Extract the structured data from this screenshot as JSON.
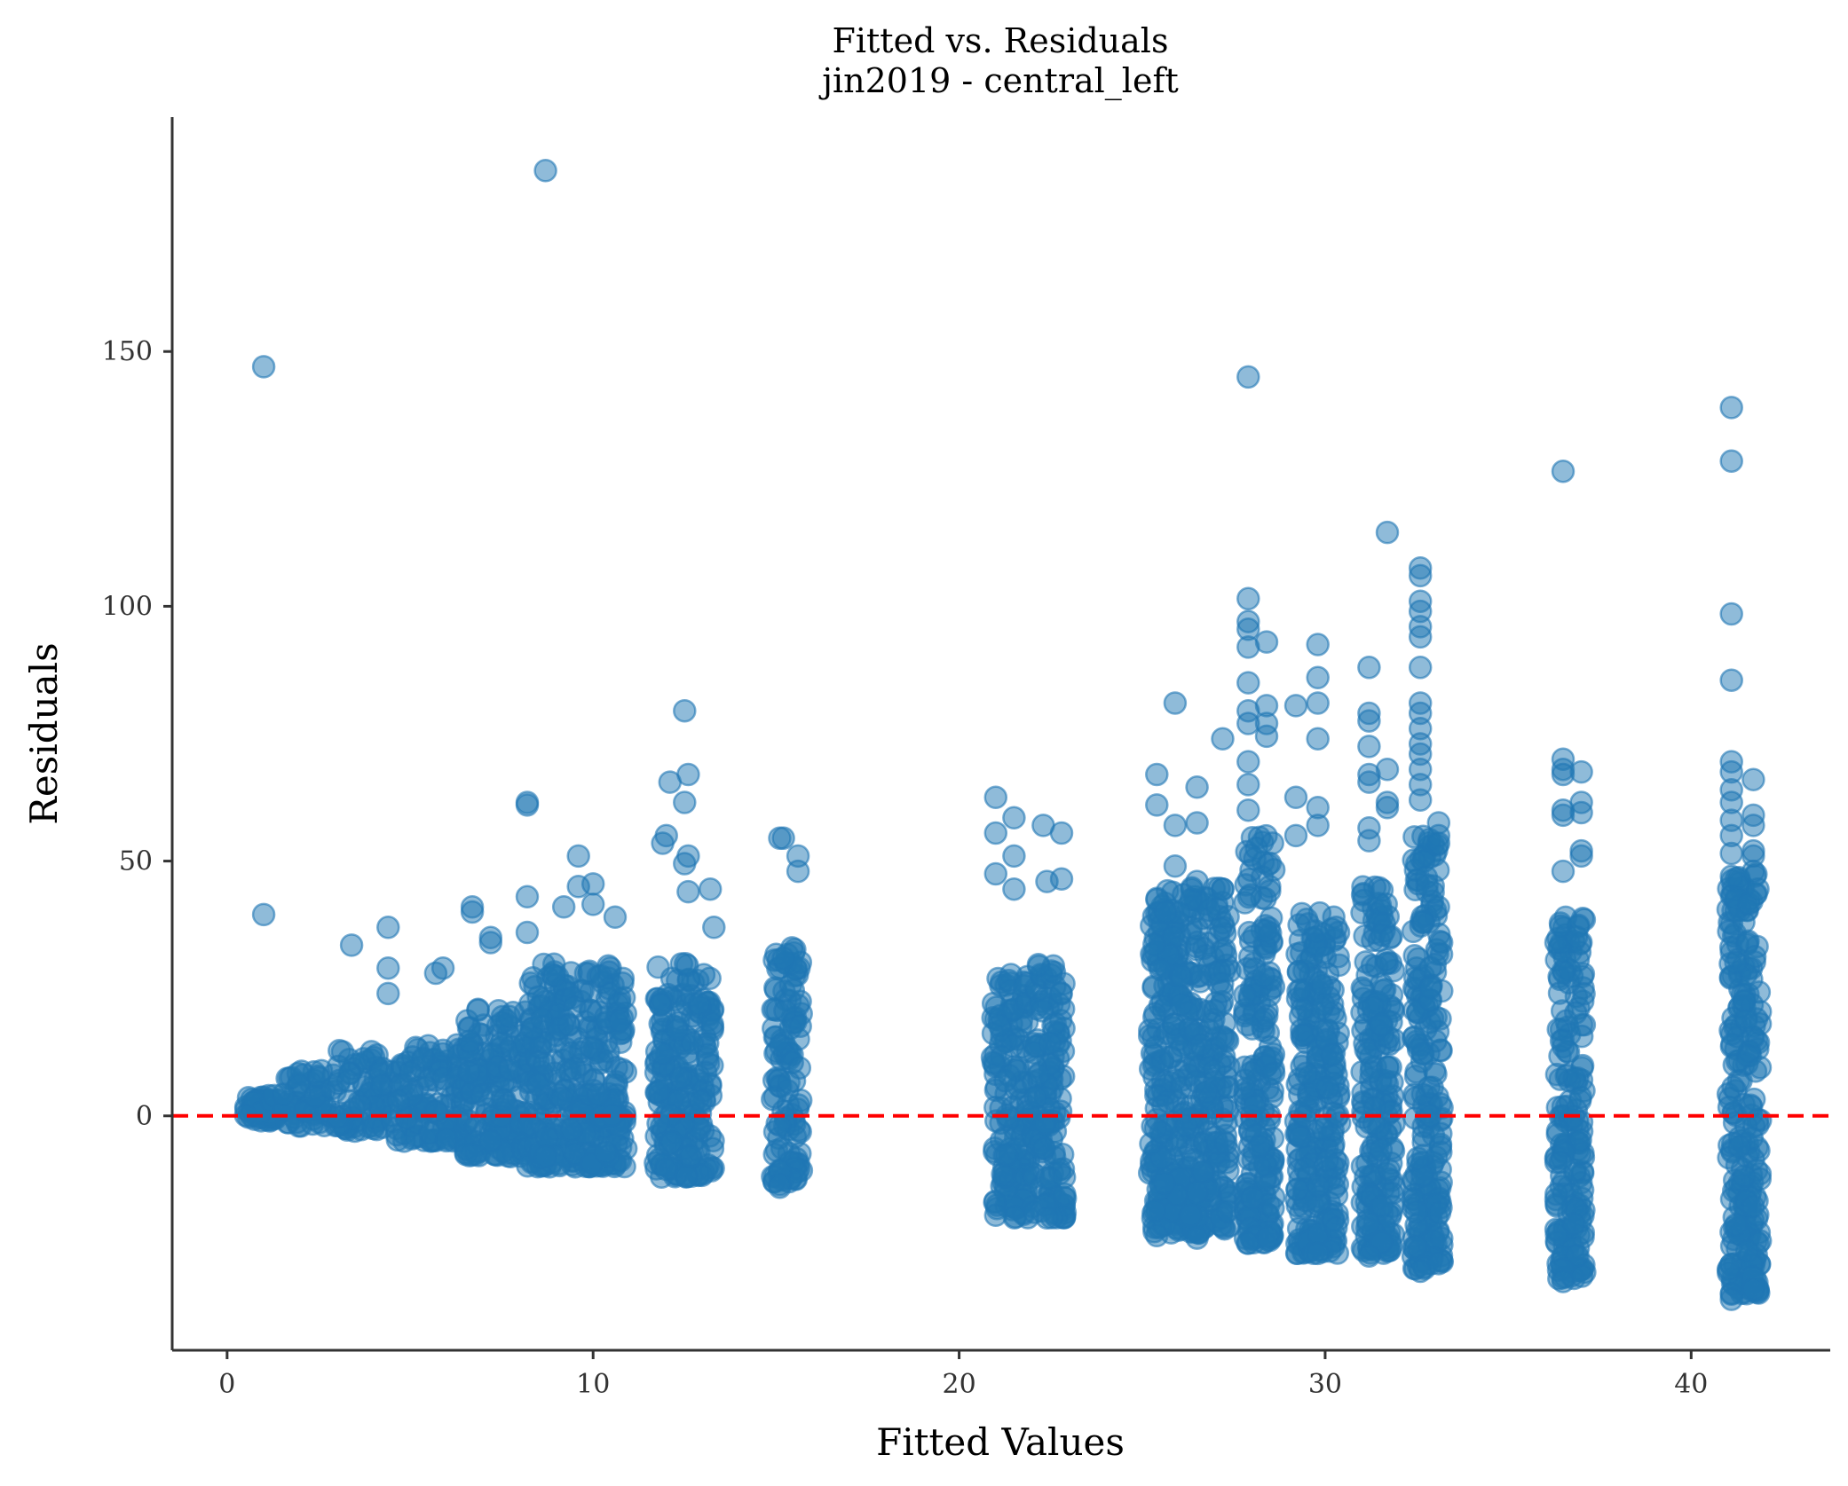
{
  "chart_data": {
    "type": "scatter",
    "title": "Fitted vs. Residuals",
    "subtitle": "jin2019 - central_left",
    "xlabel": "Fitted Values",
    "ylabel": "Residuals",
    "xlim": [
      -1.5,
      43.8
    ],
    "ylim": [
      -46,
      196
    ],
    "xticks": [
      0,
      10,
      20,
      30,
      40
    ],
    "yticks": [
      0,
      50,
      100,
      150
    ],
    "grid": false,
    "legend": "none",
    "point_color": "#1f77b4",
    "point_alpha": 0.5,
    "reference_line": {
      "y": 0,
      "color": "#ff0000",
      "style": "dashed"
    },
    "clusters": [
      {
        "x": [
          0.5,
          1.5
        ],
        "y": [
          -1,
          4
        ]
      },
      {
        "x": [
          1.5,
          3.0
        ],
        "y": [
          -2,
          9
        ]
      },
      {
        "x": [
          3.0,
          4.5
        ],
        "y": [
          -3,
          13
        ]
      },
      {
        "x": [
          4.5,
          6.5
        ],
        "y": [
          -5,
          14
        ]
      },
      {
        "x": [
          6.5,
          8.2
        ],
        "y": [
          -8,
          22
        ]
      },
      {
        "x": [
          8.2,
          10.9
        ],
        "y": [
          -10,
          30
        ]
      },
      {
        "x": [
          11.7,
          13.3
        ],
        "y": [
          -12,
          30
        ]
      },
      {
        "x": [
          14.9,
          15.7
        ],
        "y": [
          -13,
          33
        ]
      },
      {
        "x": [
          20.9,
          21.9
        ],
        "y": [
          -20,
          28
        ]
      },
      {
        "x": [
          22.0,
          22.9
        ],
        "y": [
          -20,
          30
        ]
      },
      {
        "x": [
          25.2,
          27.4
        ],
        "y": [
          -23,
          45
        ]
      },
      {
        "x": [
          27.8,
          28.6
        ],
        "y": [
          -25,
          55
        ]
      },
      {
        "x": [
          29.2,
          30.4
        ],
        "y": [
          -27,
          40
        ]
      },
      {
        "x": [
          31.0,
          31.9
        ],
        "y": [
          -27,
          45
        ]
      },
      {
        "x": [
          32.4,
          33.2
        ],
        "y": [
          -30,
          55
        ]
      },
      {
        "x": [
          36.3,
          37.1
        ],
        "y": [
          -32,
          40
        ]
      },
      {
        "x": [
          41.0,
          41.9
        ],
        "y": [
          -35,
          48
        ]
      }
    ],
    "outliers": [
      {
        "x": 1.0,
        "y": 147
      },
      {
        "x": 1.0,
        "y": 39.5
      },
      {
        "x": 8.7,
        "y": 185.5
      },
      {
        "x": 3.4,
        "y": 33.5
      },
      {
        "x": 4.4,
        "y": 37
      },
      {
        "x": 4.4,
        "y": 29
      },
      {
        "x": 4.4,
        "y": 24
      },
      {
        "x": 5.7,
        "y": 28
      },
      {
        "x": 5.9,
        "y": 29
      },
      {
        "x": 6.7,
        "y": 41
      },
      {
        "x": 6.7,
        "y": 40
      },
      {
        "x": 7.2,
        "y": 35
      },
      {
        "x": 7.2,
        "y": 34
      },
      {
        "x": 8.2,
        "y": 61.5
      },
      {
        "x": 8.2,
        "y": 61
      },
      {
        "x": 8.2,
        "y": 43
      },
      {
        "x": 8.2,
        "y": 36
      },
      {
        "x": 9.6,
        "y": 51
      },
      {
        "x": 9.6,
        "y": 45
      },
      {
        "x": 10.0,
        "y": 45.5
      },
      {
        "x": 10.0,
        "y": 41.5
      },
      {
        "x": 9.2,
        "y": 41
      },
      {
        "x": 10.6,
        "y": 39
      },
      {
        "x": 12.5,
        "y": 79.5
      },
      {
        "x": 12.6,
        "y": 67
      },
      {
        "x": 12.1,
        "y": 65.5
      },
      {
        "x": 12.5,
        "y": 61.5
      },
      {
        "x": 11.9,
        "y": 53.5
      },
      {
        "x": 12.0,
        "y": 55
      },
      {
        "x": 12.6,
        "y": 51
      },
      {
        "x": 12.5,
        "y": 49.5
      },
      {
        "x": 13.2,
        "y": 44.5
      },
      {
        "x": 12.6,
        "y": 44
      },
      {
        "x": 13.3,
        "y": 37
      },
      {
        "x": 15.1,
        "y": 54.5
      },
      {
        "x": 15.2,
        "y": 54.5
      },
      {
        "x": 15.6,
        "y": 51
      },
      {
        "x": 15.6,
        "y": 48
      },
      {
        "x": 21.0,
        "y": 62.5
      },
      {
        "x": 21.0,
        "y": 55.5
      },
      {
        "x": 21.5,
        "y": 58.5
      },
      {
        "x": 21.5,
        "y": 51
      },
      {
        "x": 21.0,
        "y": 47.5
      },
      {
        "x": 21.5,
        "y": 44.5
      },
      {
        "x": 22.3,
        "y": 57
      },
      {
        "x": 22.8,
        "y": 55.5
      },
      {
        "x": 22.4,
        "y": 46
      },
      {
        "x": 22.8,
        "y": 46.5
      },
      {
        "x": 25.4,
        "y": 67
      },
      {
        "x": 25.4,
        "y": 61
      },
      {
        "x": 25.9,
        "y": 81
      },
      {
        "x": 26.5,
        "y": 64.5
      },
      {
        "x": 26.5,
        "y": 57.5
      },
      {
        "x": 25.9,
        "y": 57
      },
      {
        "x": 27.2,
        "y": 74
      },
      {
        "x": 25.9,
        "y": 49
      },
      {
        "x": 26.5,
        "y": 46
      },
      {
        "x": 27.2,
        "y": 44.5
      },
      {
        "x": 27.9,
        "y": 145
      },
      {
        "x": 27.9,
        "y": 101.5
      },
      {
        "x": 27.9,
        "y": 97
      },
      {
        "x": 27.9,
        "y": 95.5
      },
      {
        "x": 27.9,
        "y": 92
      },
      {
        "x": 27.9,
        "y": 85
      },
      {
        "x": 27.9,
        "y": 79.5
      },
      {
        "x": 27.9,
        "y": 77
      },
      {
        "x": 28.4,
        "y": 93
      },
      {
        "x": 28.4,
        "y": 80.5
      },
      {
        "x": 28.4,
        "y": 77
      },
      {
        "x": 28.4,
        "y": 74.5
      },
      {
        "x": 27.9,
        "y": 69.5
      },
      {
        "x": 27.9,
        "y": 65
      },
      {
        "x": 27.9,
        "y": 60
      },
      {
        "x": 29.2,
        "y": 80.5
      },
      {
        "x": 29.8,
        "y": 92.5
      },
      {
        "x": 29.8,
        "y": 86
      },
      {
        "x": 29.8,
        "y": 81
      },
      {
        "x": 29.8,
        "y": 74
      },
      {
        "x": 29.2,
        "y": 62.5
      },
      {
        "x": 29.8,
        "y": 60.5
      },
      {
        "x": 29.8,
        "y": 57
      },
      {
        "x": 29.2,
        "y": 55
      },
      {
        "x": 30.3,
        "y": 37
      },
      {
        "x": 31.2,
        "y": 88
      },
      {
        "x": 31.2,
        "y": 79
      },
      {
        "x": 31.2,
        "y": 77.5
      },
      {
        "x": 31.2,
        "y": 72.5
      },
      {
        "x": 31.2,
        "y": 67
      },
      {
        "x": 31.2,
        "y": 65.5
      },
      {
        "x": 31.7,
        "y": 114.5
      },
      {
        "x": 31.7,
        "y": 68
      },
      {
        "x": 31.7,
        "y": 61.5
      },
      {
        "x": 31.7,
        "y": 60.5
      },
      {
        "x": 31.2,
        "y": 56.5
      },
      {
        "x": 31.2,
        "y": 54
      },
      {
        "x": 32.6,
        "y": 107.5
      },
      {
        "x": 32.6,
        "y": 106
      },
      {
        "x": 32.6,
        "y": 101
      },
      {
        "x": 32.6,
        "y": 99
      },
      {
        "x": 32.6,
        "y": 96
      },
      {
        "x": 32.6,
        "y": 94
      },
      {
        "x": 32.6,
        "y": 88
      },
      {
        "x": 32.6,
        "y": 81
      },
      {
        "x": 32.6,
        "y": 79
      },
      {
        "x": 32.6,
        "y": 76
      },
      {
        "x": 32.6,
        "y": 73
      },
      {
        "x": 32.6,
        "y": 71
      },
      {
        "x": 32.6,
        "y": 68
      },
      {
        "x": 32.6,
        "y": 65
      },
      {
        "x": 32.6,
        "y": 62
      },
      {
        "x": 33.1,
        "y": 57.5
      },
      {
        "x": 33.1,
        "y": 55
      },
      {
        "x": 33.1,
        "y": 53.5
      },
      {
        "x": 36.5,
        "y": 126.5
      },
      {
        "x": 36.5,
        "y": 70
      },
      {
        "x": 36.5,
        "y": 68
      },
      {
        "x": 36.5,
        "y": 67
      },
      {
        "x": 36.5,
        "y": 60
      },
      {
        "x": 36.5,
        "y": 59
      },
      {
        "x": 37.0,
        "y": 67.5
      },
      {
        "x": 37.0,
        "y": 61.5
      },
      {
        "x": 37.0,
        "y": 59.5
      },
      {
        "x": 37.0,
        "y": 52
      },
      {
        "x": 37.0,
        "y": 51
      },
      {
        "x": 36.5,
        "y": 48
      },
      {
        "x": 41.1,
        "y": 139
      },
      {
        "x": 41.1,
        "y": 128.5
      },
      {
        "x": 41.1,
        "y": 98.5
      },
      {
        "x": 41.1,
        "y": 85.5
      },
      {
        "x": 41.1,
        "y": 69.5
      },
      {
        "x": 41.1,
        "y": 67.5
      },
      {
        "x": 41.1,
        "y": 64
      },
      {
        "x": 41.1,
        "y": 61.5
      },
      {
        "x": 41.1,
        "y": 58
      },
      {
        "x": 41.7,
        "y": 66
      },
      {
        "x": 41.7,
        "y": 59
      },
      {
        "x": 41.7,
        "y": 57
      },
      {
        "x": 41.1,
        "y": 55
      },
      {
        "x": 41.7,
        "y": 52
      },
      {
        "x": 41.7,
        "y": 51
      },
      {
        "x": 41.7,
        "y": 48
      },
      {
        "x": 41.1,
        "y": 51.5
      },
      {
        "x": 41.1,
        "y": 47
      },
      {
        "x": 41.1,
        "y": -35
      },
      {
        "x": 41.1,
        "y": -36
      },
      {
        "x": 41.7,
        "y": -34
      },
      {
        "x": 36.5,
        "y": -32.5
      },
      {
        "x": 33.1,
        "y": -29
      },
      {
        "x": 32.6,
        "y": -30.5
      },
      {
        "x": 31.2,
        "y": -27.5
      },
      {
        "x": 29.8,
        "y": -27
      },
      {
        "x": 30.3,
        "y": -22
      },
      {
        "x": 27.9,
        "y": -25
      },
      {
        "x": 26.5,
        "y": -24
      },
      {
        "x": 25.4,
        "y": -23.5
      },
      {
        "x": 22.4,
        "y": -20
      },
      {
        "x": 21.0,
        "y": -19.5
      },
      {
        "x": 15.1,
        "y": -14
      },
      {
        "x": 15.1,
        "y": -13.5
      }
    ]
  }
}
